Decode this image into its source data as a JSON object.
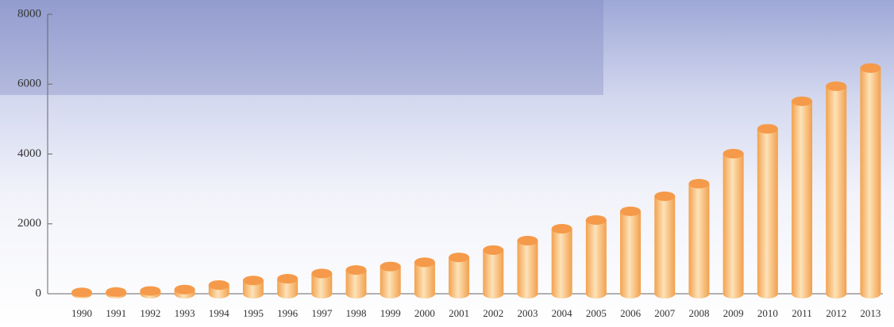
{
  "chart_data": {
    "type": "bar",
    "categories": [
      "1990",
      "1991",
      "1992",
      "1993",
      "1994",
      "1995",
      "1996",
      "1997",
      "1998",
      "1999",
      "2000",
      "2001",
      "2002",
      "2003",
      "2004",
      "2005",
      "2006",
      "2007",
      "2008",
      "2009",
      "2010",
      "2011",
      "2012",
      "2013"
    ],
    "values": [
      40,
      50,
      80,
      120,
      250,
      380,
      430,
      580,
      680,
      780,
      900,
      1040,
      1250,
      1520,
      1860,
      2110,
      2360,
      2790,
      3150,
      4010,
      4720,
      5510,
      5940,
      6460
    ],
    "color": "#f7b56a",
    "ylim": [
      0,
      8000
    ],
    "yticks": [
      0,
      2000,
      4000,
      6000,
      8000
    ],
    "grid": false
  }
}
